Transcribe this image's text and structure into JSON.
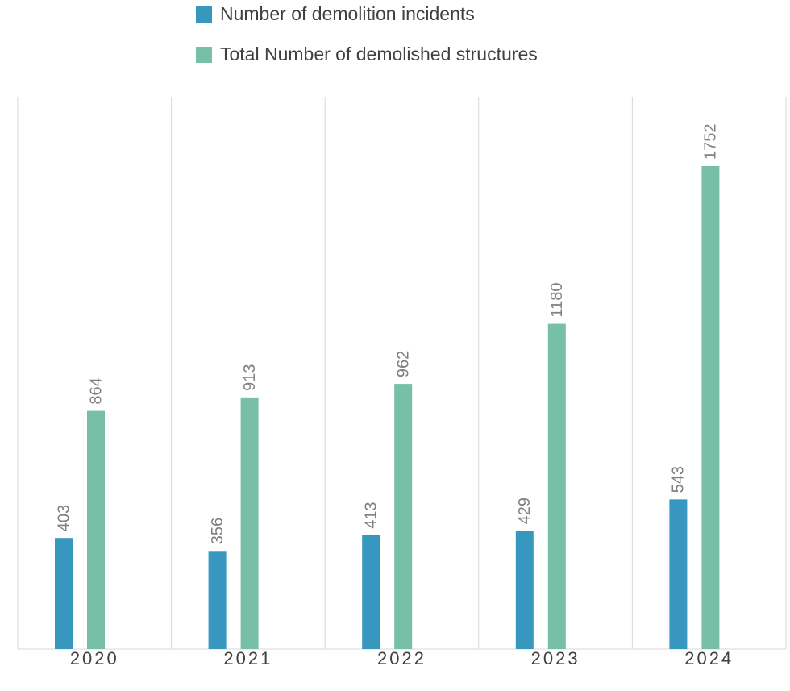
{
  "chart_data": {
    "type": "bar",
    "categories": [
      "2020",
      "2021",
      "2022",
      "2023",
      "2024"
    ],
    "series": [
      {
        "name": "Number of demolition incidents",
        "color": "#3797bf",
        "values": [
          403,
          356,
          413,
          429,
          543
        ]
      },
      {
        "name": "Total Number of demolished structures",
        "color": "#78bfa8",
        "values": [
          864,
          913,
          962,
          1180,
          1752
        ]
      }
    ],
    "grid": true,
    "legend": "top"
  }
}
